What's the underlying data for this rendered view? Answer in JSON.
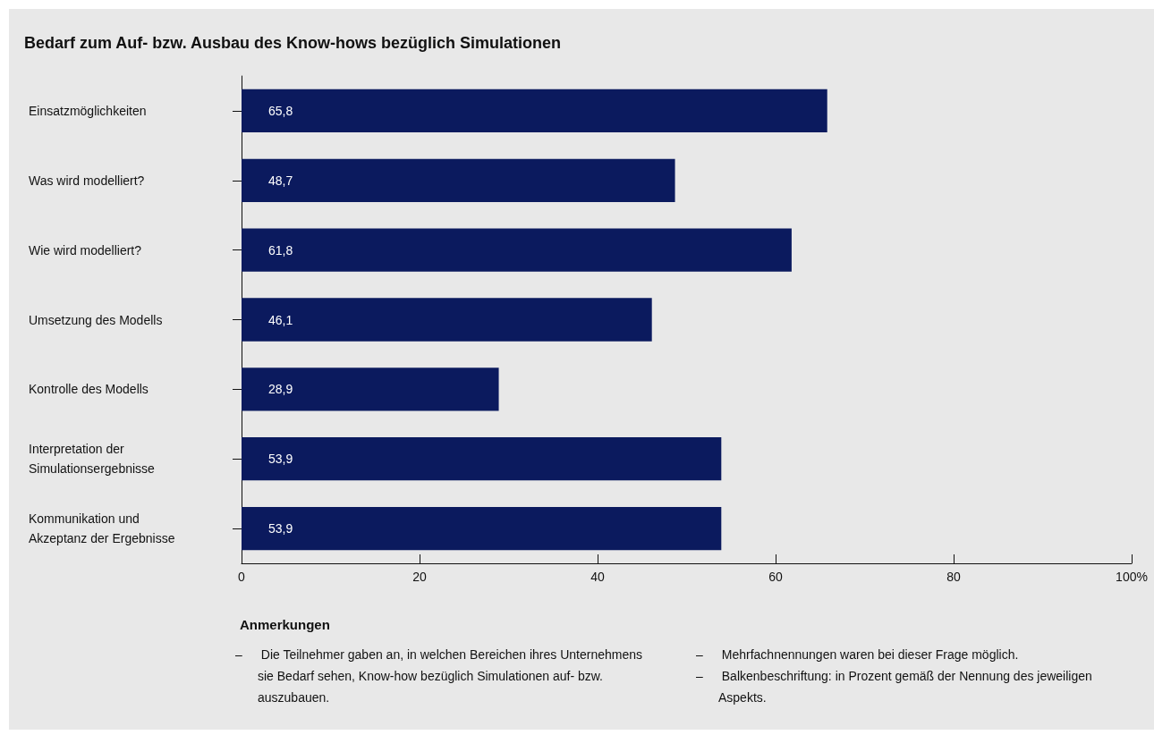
{
  "chart_data": {
    "type": "bar",
    "orientation": "horizontal",
    "title": "Bedarf zum Auf- bzw. Ausbau des Know-hows bezüglich Simulationen",
    "categories": [
      "Einsatzmöglichkeiten",
      "Was wird modelliert?",
      "Wie wird modelliert?",
      "Umsetzung des Modells",
      "Kontrolle des Modells",
      "Interpretation der Simulationsergebnisse",
      "Kommunikation und Akzeptanz der Ergebnisse"
    ],
    "values": [
      65.8,
      48.7,
      61.8,
      46.1,
      28.9,
      53.9,
      53.9
    ],
    "color": "#0b1a5e",
    "xlim": [
      0,
      100
    ],
    "xticks": [
      0,
      20,
      40,
      60,
      80,
      {
        "value": 100,
        "label": "100%"
      }
    ],
    "value_labels": [
      "65,8",
      "48,7",
      "61,8",
      "46,1",
      "28,9",
      "53,9",
      "53,9"
    ],
    "grid": false,
    "annotations": [
      "Anmerkungen",
      "– Die Teilnehmer gaben an, in welchen Bereichen ihres Unternehmens sie Bedarf sehen, Know-how bezüglich Simulationen auf- bzw. auszubauen.",
      "– Mehrfachnennungen waren bei dieser Frage möglich.",
      "– Balkenbeschriftung: in Prozent gemäß der Nennung des jeweiligen Aspekts."
    ]
  }
}
